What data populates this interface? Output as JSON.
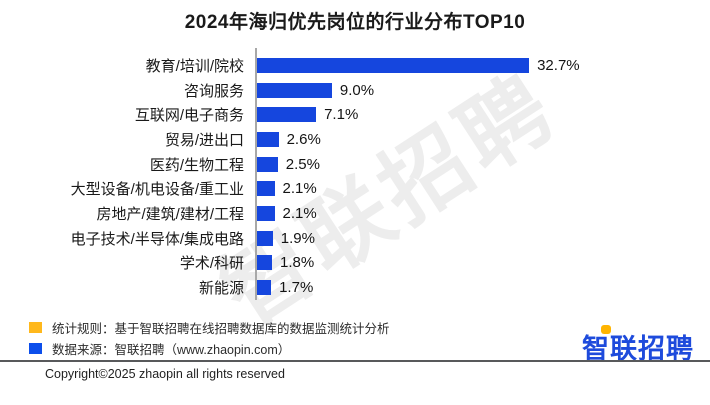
{
  "title": "2024年海归优先岗位的行业分布TOP10",
  "chart_data": {
    "type": "bar",
    "orientation": "horizontal",
    "title": "2024年海归优先岗位的行业分布TOP10",
    "categories": [
      "教育/培训/院校",
      "咨询服务",
      "互联网/电子商务",
      "贸易/进出口",
      "医药/生物工程",
      "大型设备/机电设备/重工业",
      "房地产/建筑/建材/工程",
      "电子技术/半导体/集成电路",
      "学术/科研",
      "新能源"
    ],
    "values": [
      32.7,
      9.0,
      7.1,
      2.6,
      2.5,
      2.1,
      2.1,
      1.9,
      1.8,
      1.7
    ],
    "value_labels": [
      "32.7%",
      "9.0%",
      "7.1%",
      "2.6%",
      "2.5%",
      "2.1%",
      "2.1%",
      "1.9%",
      "1.8%",
      "1.7%"
    ],
    "xlabel": "",
    "ylabel": "",
    "xlim": [
      0,
      35
    ],
    "grid": false,
    "legend": "none",
    "bar_color": "#1546DE"
  },
  "colors": {
    "bar": "#1546DE",
    "axis": "#a8a8a8",
    "watermark": "#ededed",
    "footnote_marker_yellow": "#FFB81C",
    "footnote_marker_blue": "#0C4EEB",
    "logo_blue": "#1E4BDC",
    "logo_accent": "#FFB400"
  },
  "watermark_text": "智联招聘",
  "footnotes": [
    {
      "marker": "yellow-square",
      "text": "统计规则：基于智联招聘在线招聘数据库的数据监测统计分析"
    },
    {
      "marker": "blue-square",
      "text": "数据来源：智联招聘（www.zhaopin.com）"
    }
  ],
  "logo": {
    "first_char": "智",
    "rest": "联招聘",
    "full_text": "智联招聘"
  },
  "copyright": "Copyright©2025 zhaopin all rights reserved"
}
